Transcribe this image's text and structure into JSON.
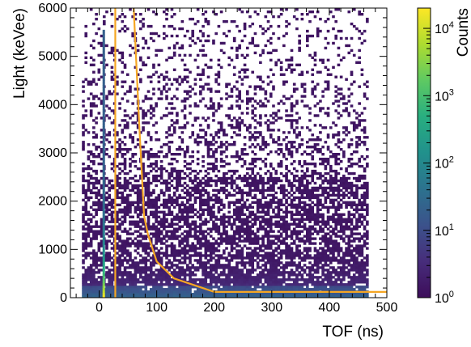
{
  "chart_data": {
    "type": "heatmap",
    "xlabel": "TOF (ns)",
    "ylabel": "Light (keVee)",
    "xlim": [
      -50,
      500
    ],
    "ylim": [
      0,
      6000
    ],
    "x_ticks": [
      0,
      100,
      200,
      300,
      400,
      500
    ],
    "y_ticks": [
      0,
      1000,
      2000,
      3000,
      4000,
      5000,
      6000
    ],
    "colorbar": {
      "label": "Counts",
      "scale": "log",
      "range": [
        1,
        20000
      ],
      "tick_labels": [
        {
          "base": "10",
          "exp": "0",
          "value": 1
        },
        {
          "base": "10",
          "exp": "1",
          "value": 10
        },
        {
          "base": "10",
          "exp": "2",
          "value": 100
        },
        {
          "base": "10",
          "exp": "3",
          "value": 1000
        },
        {
          "base": "10",
          "exp": "4",
          "value": 10000
        }
      ],
      "colors": [
        "#3d0d5a",
        "#472d7b",
        "#3b528b",
        "#2c728e",
        "#21918c",
        "#28ae80",
        "#5ec962",
        "#addc30",
        "#fde725"
      ]
    },
    "populations": {
      "gamma_band_tof": 8,
      "gamma_band_top": 5500,
      "data_tof_range": [
        -30,
        468
      ],
      "dense_light_max": 2500
    },
    "series": [
      {
        "type": "line",
        "color": "#f5a623",
        "x": [
          28,
          28
        ],
        "y": [
          0,
          6000
        ]
      },
      {
        "type": "line",
        "color": "#f5a623",
        "x": [
          60,
          70,
          78,
          85,
          100,
          130,
          200,
          500
        ],
        "y": [
          6000,
          3500,
          1700,
          1300,
          750,
          400,
          120,
          120
        ]
      }
    ]
  }
}
